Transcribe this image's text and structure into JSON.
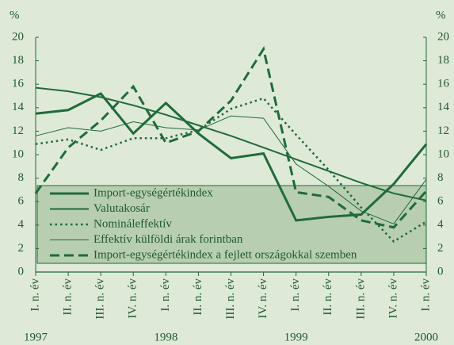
{
  "chart_data": {
    "type": "line",
    "y_unit_label": "%",
    "categories": [
      "I. n. év",
      "II. n. év",
      "III. n. év",
      "IV. n. év",
      "I. n. év",
      "II. n. év",
      "III. n. év",
      "IV. n. év",
      "I. n. év",
      "II. n. év",
      "III. n. év",
      "IV. n. év",
      "I. n. év"
    ],
    "year_labels": [
      "1997",
      "1998",
      "1999",
      "2000"
    ],
    "ylim": [
      0,
      20
    ],
    "yticks": [
      0,
      2,
      4,
      6,
      8,
      10,
      12,
      14,
      16,
      18,
      20
    ],
    "legend": "bottom-left",
    "series": [
      {
        "name": "Import-egységértékindex",
        "color": "#1f6b3a",
        "style": "thick",
        "values": [
          13.5,
          13.8,
          15.2,
          11.8,
          14.4,
          11.8,
          9.7,
          10.1,
          4.4,
          4.7,
          4.9,
          7.5,
          10.9
        ]
      },
      {
        "name": "Valutakosár",
        "color": "#1f6b3a",
        "style": "medium",
        "values": [
          15.7,
          15.4,
          14.9,
          14.2,
          13.4,
          12.5,
          11.6,
          10.6,
          9.6,
          8.6,
          7.6,
          6.7,
          6.1
        ]
      },
      {
        "name": "Nomináleffektív",
        "color": "#1f6b3a",
        "style": "dotted",
        "values": [
          10.9,
          11.3,
          10.4,
          11.4,
          11.4,
          12.1,
          13.9,
          14.8,
          11.7,
          8.7,
          5.5,
          2.6,
          4.3
        ]
      },
      {
        "name": "Effektív külföldi árak forintban",
        "color": "#1f6b3a",
        "style": "thin",
        "values": [
          11.6,
          12.3,
          12.0,
          12.8,
          12.3,
          12.1,
          13.3,
          13.1,
          9.2,
          7.3,
          5.2,
          4.1,
          7.9
        ]
      },
      {
        "name": "Import-egységértékindex a fejlett országokkal szemben",
        "color": "#1f6b3a",
        "style": "dashed",
        "values": [
          6.7,
          10.6,
          12.9,
          15.8,
          11.0,
          12.0,
          14.6,
          19.0,
          6.8,
          6.4,
          4.4,
          3.8,
          6.9
        ]
      }
    ]
  }
}
